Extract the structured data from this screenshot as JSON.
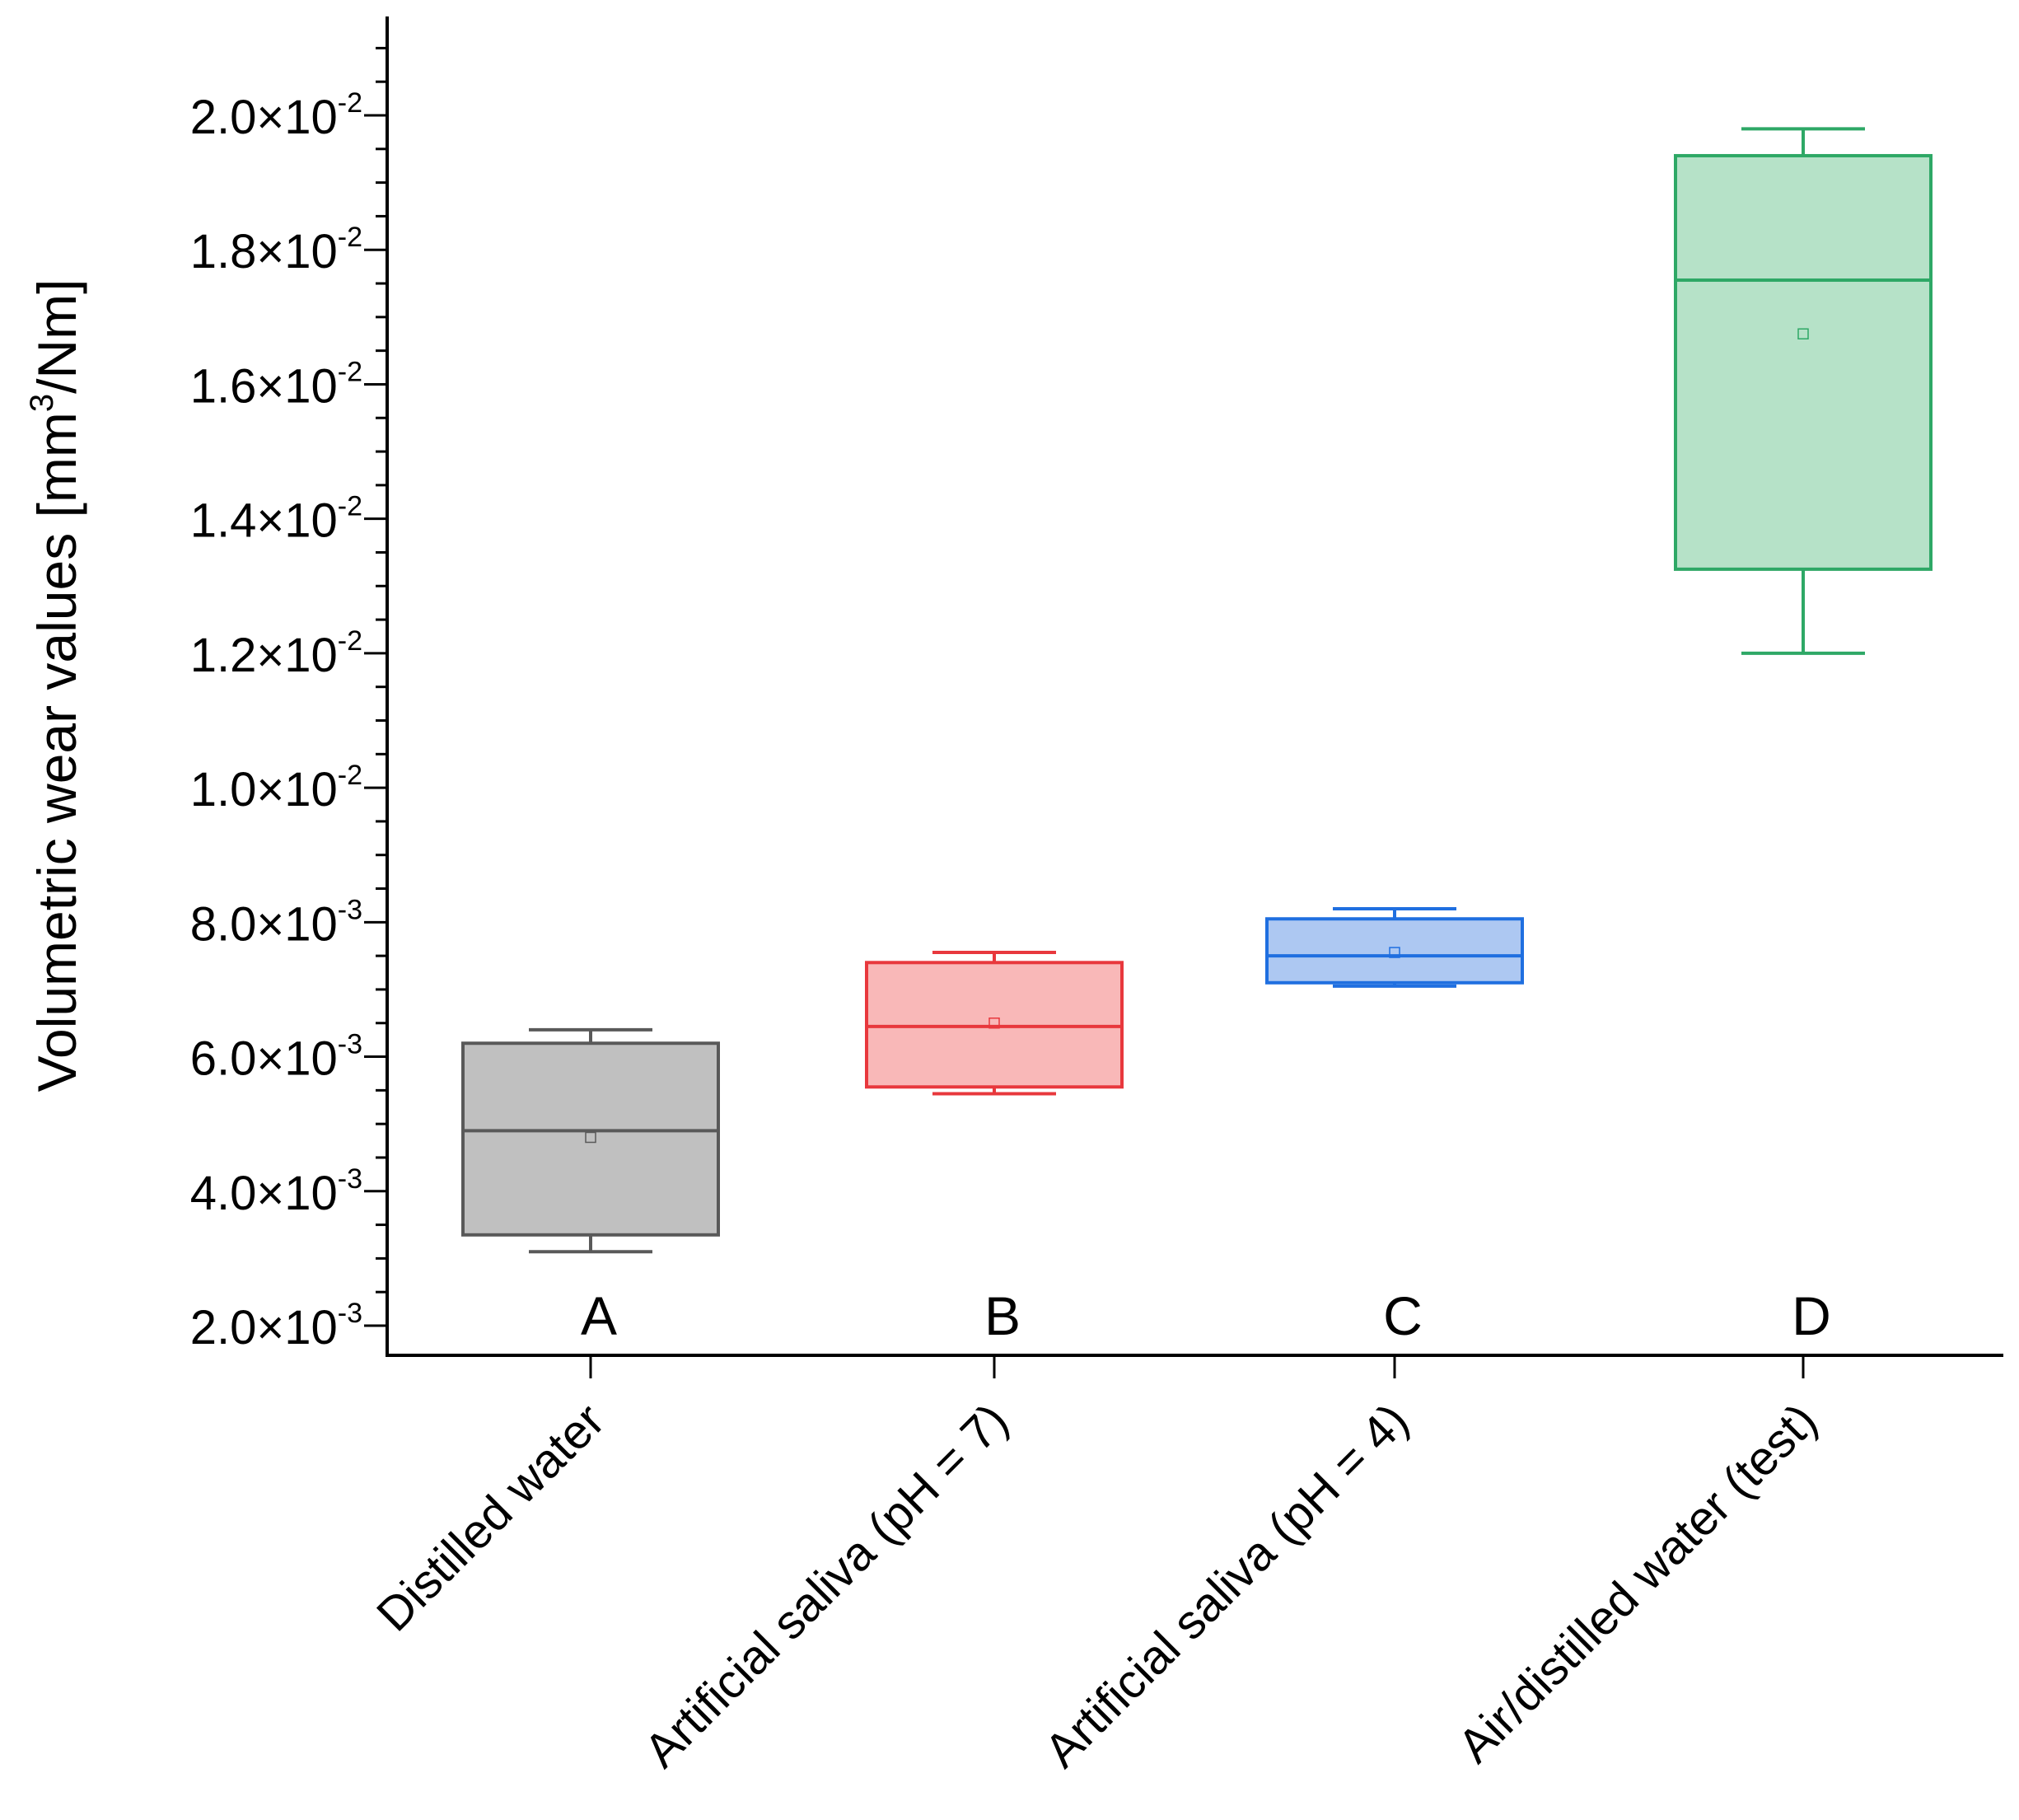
{
  "chart_data": {
    "type": "box",
    "title": "",
    "xlabel": "",
    "ylabel": {
      "prefix": "Volumetric wear values [mm",
      "superscript": "3",
      "suffix": "/Nm]"
    },
    "ylim": [
      0.0015,
      0.0215
    ],
    "y_ticks": [
      {
        "value": 0.002,
        "mantissa": "2.0×10",
        "exponent": "-3"
      },
      {
        "value": 0.004,
        "mantissa": "4.0×10",
        "exponent": "-3"
      },
      {
        "value": 0.006,
        "mantissa": "6.0×10",
        "exponent": "-3"
      },
      {
        "value": 0.008,
        "mantissa": "8.0×10",
        "exponent": "-3"
      },
      {
        "value": 0.01,
        "mantissa": "1.0×10",
        "exponent": "-2"
      },
      {
        "value": 0.012,
        "mantissa": "1.2×10",
        "exponent": "-2"
      },
      {
        "value": 0.014,
        "mantissa": "1.4×10",
        "exponent": "-2"
      },
      {
        "value": 0.016,
        "mantissa": "1.6×10",
        "exponent": "-2"
      },
      {
        "value": 0.018,
        "mantissa": "1.8×10",
        "exponent": "-2"
      },
      {
        "value": 0.02,
        "mantissa": "2.0×10",
        "exponent": "-2"
      }
    ],
    "y_minor_step": 0.0005,
    "categories": [
      "Distilled water",
      "Artificial saliva (pH = 7)",
      "Artificial saliva (pH = 4)",
      "Air/distilled water (test)"
    ],
    "group_letters": [
      "A",
      "B",
      "C",
      "D"
    ],
    "boxes": [
      {
        "whisker_low": 0.0031,
        "q1": 0.00335,
        "median": 0.0049,
        "q3": 0.0062,
        "whisker_high": 0.0064,
        "mean": 0.0048,
        "stroke": "#595959",
        "fill": "#c0c0c0"
      },
      {
        "whisker_low": 0.00545,
        "q1": 0.00555,
        "median": 0.00645,
        "q3": 0.0074,
        "whisker_high": 0.00755,
        "mean": 0.0065,
        "stroke": "#e8383d",
        "fill": "#f9b8b8"
      },
      {
        "whisker_low": 0.00705,
        "q1": 0.0071,
        "median": 0.0075,
        "q3": 0.00805,
        "whisker_high": 0.0082,
        "mean": 0.00755,
        "stroke": "#1f6fe0",
        "fill": "#adc8f2"
      },
      {
        "whisker_low": 0.012,
        "q1": 0.01325,
        "median": 0.01755,
        "q3": 0.0194,
        "whisker_high": 0.0198,
        "mean": 0.01675,
        "stroke": "#2ea866",
        "fill": "#b6e2c8"
      }
    ]
  }
}
